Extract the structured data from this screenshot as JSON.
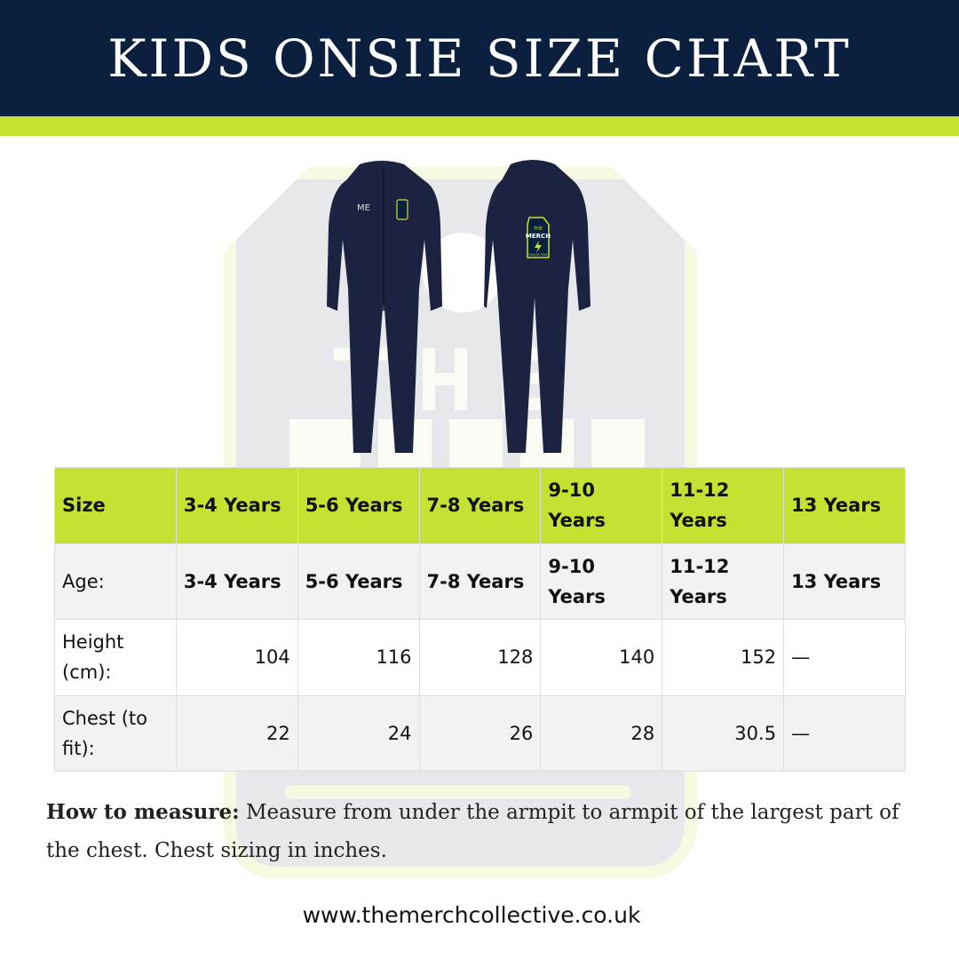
{
  "title": "KIDS ONSIE SIZE CHART",
  "colors": {
    "navy": "#0b1f3f",
    "lime": "#c5e233"
  },
  "watermark": {
    "line1": "THE",
    "line2": "MERCH",
    "line3": "COLLECTIVE"
  },
  "product": {
    "front_print": "ME",
    "logo_lines": [
      "THE",
      "MERCH",
      "COLLECTIVE"
    ]
  },
  "table": {
    "header": [
      "Size",
      "3-4 Years",
      "5-6 Years",
      "7-8 Years",
      "9-10 Years",
      "11-12 Years",
      "13 Years"
    ],
    "rows": [
      [
        "Age:",
        "3-4 Years",
        "5-6 Years",
        "7-8 Years",
        "9-10 Years",
        "11-12 Years",
        "13 Years"
      ],
      [
        "Height (cm):",
        "104",
        "116",
        "128",
        "140",
        "152",
        "—"
      ],
      [
        "Chest (to fit):",
        "22",
        "24",
        "26",
        "28",
        "30.5",
        "—"
      ]
    ]
  },
  "how_to": {
    "label": "How to measure:",
    "text": " Measure from under the armpit to armpit of the largest part of the chest. Chest sizing in inches."
  },
  "website": "www.themerchcollective.co.uk"
}
